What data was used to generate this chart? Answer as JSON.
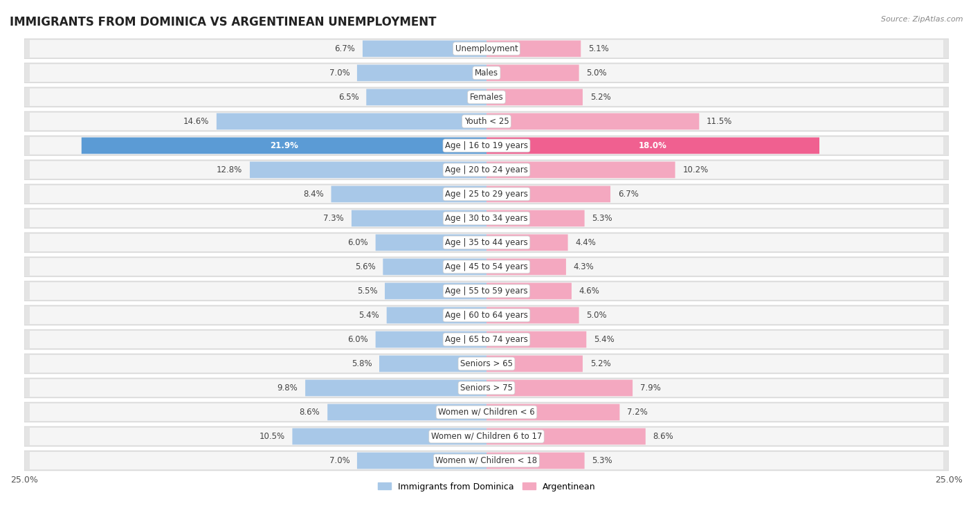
{
  "title": "IMMIGRANTS FROM DOMINICA VS ARGENTINEAN UNEMPLOYMENT",
  "source": "Source: ZipAtlas.com",
  "categories": [
    "Unemployment",
    "Males",
    "Females",
    "Youth < 25",
    "Age | 16 to 19 years",
    "Age | 20 to 24 years",
    "Age | 25 to 29 years",
    "Age | 30 to 34 years",
    "Age | 35 to 44 years",
    "Age | 45 to 54 years",
    "Age | 55 to 59 years",
    "Age | 60 to 64 years",
    "Age | 65 to 74 years",
    "Seniors > 65",
    "Seniors > 75",
    "Women w/ Children < 6",
    "Women w/ Children 6 to 17",
    "Women w/ Children < 18"
  ],
  "left_values": [
    6.7,
    7.0,
    6.5,
    14.6,
    21.9,
    12.8,
    8.4,
    7.3,
    6.0,
    5.6,
    5.5,
    5.4,
    6.0,
    5.8,
    9.8,
    8.6,
    10.5,
    7.0
  ],
  "right_values": [
    5.1,
    5.0,
    5.2,
    11.5,
    18.0,
    10.2,
    6.7,
    5.3,
    4.4,
    4.3,
    4.6,
    5.0,
    5.4,
    5.2,
    7.9,
    7.2,
    8.6,
    5.3
  ],
  "left_color": "#A8C8E8",
  "right_color": "#F4A8C0",
  "highlight_left_color": "#5B9BD5",
  "highlight_right_color": "#F06090",
  "highlight_index": 4,
  "axis_limit": 25.0,
  "legend_left": "Immigrants from Dominica",
  "legend_right": "Argentinean",
  "row_bg_color": "#E8E8E8",
  "row_inner_color": "#F8F8F8",
  "title_fontsize": 12,
  "label_fontsize": 8.5,
  "value_fontsize": 8.5
}
